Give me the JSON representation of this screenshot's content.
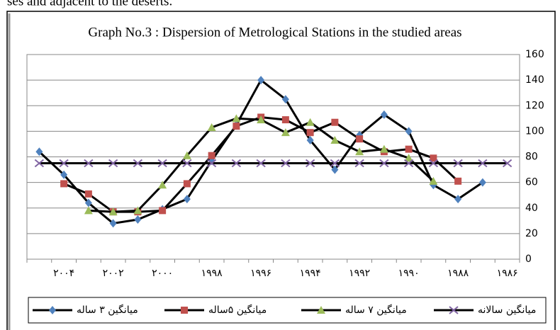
{
  "header_text": "ses and adjacent to the deserts.",
  "chart_data": {
    "type": "line",
    "title": "Graph No.3 : Dispersion of Metrological Stations in the studied areas",
    "categories": [
      null,
      "۲۰۰۴",
      null,
      "۲۰۰۲",
      null,
      "۲۰۰۰",
      null,
      "۱۹۹۸",
      null,
      "۱۹۹۶",
      null,
      "۱۹۹۴",
      null,
      "۱۹۹۲",
      null,
      "۱۹۹۰",
      null,
      "۱۹۸۸",
      null,
      "۱۹۸۶"
    ],
    "series": [
      {
        "name": "میانگین ۳ ساله",
        "color": "#4f81bd",
        "marker": "diamond",
        "values": [
          84,
          66,
          44,
          28,
          31,
          39,
          47,
          77,
          105,
          140,
          125,
          93,
          70,
          97,
          113,
          100,
          58,
          47,
          60,
          null
        ]
      },
      {
        "name": "میانگین ۵ساله",
        "color": "#c0504d",
        "marker": "square",
        "values": [
          null,
          59,
          51,
          37,
          37,
          38,
          59,
          81,
          104,
          111,
          109,
          99,
          107,
          94,
          84,
          86,
          79,
          61,
          null,
          null
        ]
      },
      {
        "name": "میانگین ۷ ساله",
        "color": "#9bbb59",
        "marker": "triangle",
        "values": [
          null,
          null,
          38,
          37,
          38,
          58,
          81,
          103,
          110,
          109,
          99,
          107,
          93,
          84,
          86,
          79,
          61,
          null,
          null,
          null
        ]
      },
      {
        "name": "میانگین سالانه",
        "color": "#8064a2",
        "marker": "x",
        "values": [
          75,
          75,
          75,
          75,
          75,
          75,
          75,
          75,
          75,
          75,
          75,
          75,
          75,
          75,
          75,
          75,
          75,
          75,
          75,
          75
        ]
      }
    ],
    "line_color": "#000000",
    "ylim": [
      0,
      160
    ],
    "yticks": [
      0,
      20,
      40,
      60,
      80,
      100,
      120,
      140,
      160
    ],
    "y_axis_side": "right",
    "grid": true,
    "legend": "bottom"
  }
}
